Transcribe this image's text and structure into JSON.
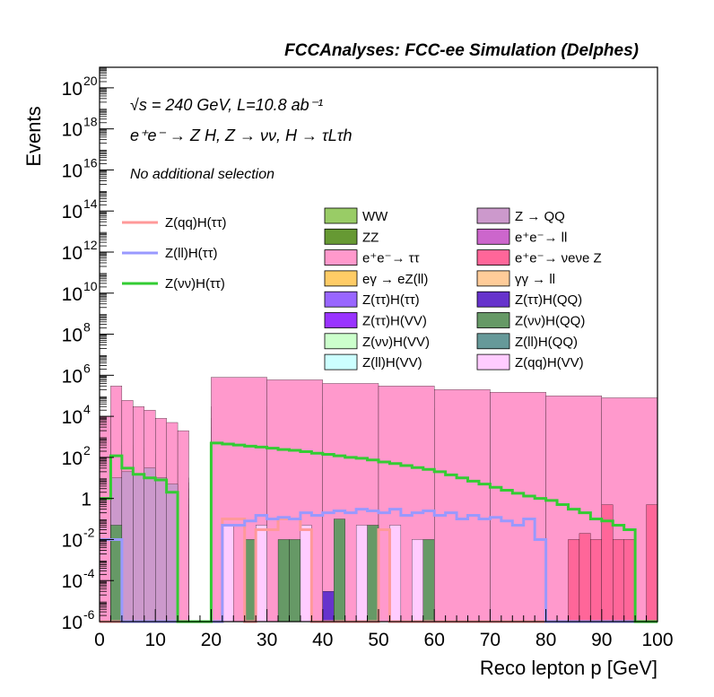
{
  "title": "FCCAnalyses: FCC-ee Simulation (Delphes)",
  "annotations": {
    "energy_line": "√s = 240 GeV, L=10.8 ab⁻¹",
    "process_line": "e⁺e⁻ → Z H, Z → νν, H → τLτh",
    "selection_line": "No additional selection"
  },
  "chart_data": {
    "type": "histogram",
    "xlabel": "Reco lepton p [GeV]",
    "ylabel": "Events",
    "xlim": [
      0,
      100
    ],
    "ylim": [
      1e-06,
      1e+21
    ],
    "yscale": "log",
    "bin_width": 2,
    "x_ticks": [
      "0",
      "10",
      "20",
      "30",
      "40",
      "50",
      "60",
      "70",
      "80",
      "90",
      "100"
    ],
    "y_ticks": [
      {
        "base": "10",
        "exp": "-6",
        "value": 1e-06
      },
      {
        "base": "10",
        "exp": "-4",
        "value": 0.0001
      },
      {
        "base": "10",
        "exp": "-2",
        "value": 0.01
      },
      {
        "base": "1",
        "exp": "",
        "value": 1
      },
      {
        "base": "10",
        "exp": "2",
        "value": 100.0
      },
      {
        "base": "10",
        "exp": "4",
        "value": 10000.0
      },
      {
        "base": "10",
        "exp": "6",
        "value": 1000000.0
      },
      {
        "base": "10",
        "exp": "8",
        "value": 100000000.0
      },
      {
        "base": "10",
        "exp": "10",
        "value": 10000000000.0
      },
      {
        "base": "10",
        "exp": "12",
        "value": 1000000000000.0
      },
      {
        "base": "10",
        "exp": "14",
        "value": 100000000000000.0
      },
      {
        "base": "10",
        "exp": "16",
        "value": 1e+16
      },
      {
        "base": "10",
        "exp": "18",
        "value": 1e+18
      },
      {
        "base": "10",
        "exp": "20",
        "value": 1e+20
      }
    ],
    "stack_bands": [
      {
        "name": "Z(ll)H(VV)",
        "color": "#ccffff",
        "x": [
          20,
          40,
          60,
          76,
          78,
          80,
          100
        ],
        "y": [
          0.05,
          0.3,
          0.3,
          0.1,
          1e-06,
          1e-06,
          1e-06
        ]
      },
      {
        "name": "Z(νν)H(VV)",
        "color": "#ccffcc",
        "x": [
          0,
          2,
          4,
          6,
          8,
          10,
          12,
          14,
          16,
          18,
          20,
          30,
          40,
          50,
          60,
          70,
          80,
          90,
          100
        ],
        "y": [
          0.3,
          0.5,
          2,
          2,
          1.5,
          1,
          0.5,
          0.1,
          1e-06,
          1e-06,
          100,
          60,
          40,
          30,
          20,
          10,
          3,
          0.5,
          0.1
        ]
      },
      {
        "name": "Z(ττ)H(VV)",
        "color": "#9933ff",
        "x": [
          0,
          2,
          4,
          6,
          8,
          10,
          12,
          14,
          16,
          18,
          20,
          40,
          60,
          70,
          80,
          90,
          100
        ],
        "y": [
          0.5,
          1,
          3,
          3,
          2,
          1.5,
          0.8,
          0.2,
          1e-06,
          1e-06,
          150,
          80,
          50,
          20,
          5,
          1,
          0.2
        ]
      },
      {
        "name": "Z(ττ)H(ττ)",
        "color": "#9966ff",
        "x": [
          0,
          2,
          4,
          6,
          8,
          10,
          12,
          14,
          16,
          18,
          20,
          40,
          60,
          80,
          100
        ],
        "y": [
          1,
          2,
          5,
          5,
          4,
          3,
          2,
          0.5,
          1e-06,
          1e-06,
          200,
          100,
          60,
          10,
          0.3
        ]
      },
      {
        "name": "eγ → eZ(ll)",
        "color": "#ffcc66",
        "x": [
          0,
          2,
          4,
          6,
          8,
          10,
          12,
          14,
          16,
          18,
          20,
          40,
          60,
          80,
          90,
          100
        ],
        "y": [
          2,
          4,
          10,
          10,
          8,
          6,
          4,
          1,
          1e-06,
          1e-06,
          300,
          200,
          150,
          100,
          80,
          50
        ]
      },
      {
        "name": "e⁺e⁻ → ll",
        "color": "#cc66cc",
        "x": [
          0,
          2,
          4,
          6,
          8,
          10,
          12,
          14,
          16,
          18,
          20,
          40,
          60,
          80,
          90,
          100
        ],
        "y": [
          10,
          30,
          80,
          60,
          40,
          20,
          10,
          3,
          1e-06,
          1e-06,
          3000,
          2000,
          1500,
          1000,
          800,
          600
        ]
      },
      {
        "name": "ZZ",
        "color": "#669933",
        "x": [
          0,
          2,
          4,
          6,
          8,
          10,
          12,
          14,
          16,
          18,
          20,
          40,
          60,
          80,
          100
        ],
        "y": [
          20,
          50,
          150,
          100,
          60,
          40,
          20,
          6,
          1e-06,
          1e-06,
          8000,
          6000,
          4000,
          2500,
          1500
        ]
      },
      {
        "name": "WW",
        "color": "#99cc66",
        "x": [
          0,
          2,
          4,
          6,
          8,
          10,
          12,
          14,
          16,
          18,
          20,
          40,
          60,
          80,
          100
        ],
        "y": [
          50,
          150,
          400,
          300,
          150,
          80,
          40,
          10,
          1e-06,
          1e-06,
          30000,
          25000,
          20000,
          15000,
          8000
        ]
      },
      {
        "name": "e⁺e⁻ → ττ",
        "color": "#ff99cc",
        "x": [
          0,
          2,
          4,
          6,
          8,
          10,
          12,
          14,
          16,
          18,
          20,
          30,
          40,
          50,
          60,
          70,
          80,
          90,
          100
        ],
        "y": [
          10000,
          300000,
          60000,
          30000,
          20000,
          8000,
          5000,
          2000,
          1e-06,
          1e-06,
          800000,
          600000,
          400000,
          300000,
          200000,
          150000,
          100000,
          80000,
          50000
        ]
      }
    ],
    "signal_lines": [
      {
        "name": "Z(qq)H(ττ)",
        "color": "#ff9999",
        "x": [
          0,
          2,
          4,
          6,
          8,
          10,
          12,
          14,
          16,
          18,
          20,
          22,
          24,
          26,
          28,
          30,
          32,
          34,
          36,
          38,
          40,
          42,
          44,
          46,
          48,
          50,
          52,
          54,
          56,
          58,
          60,
          62,
          64,
          66,
          68,
          70,
          72,
          74,
          76,
          78,
          80,
          82,
          84,
          86,
          88,
          90,
          92,
          94,
          96,
          98,
          100
        ],
        "y": [
          1e-06,
          1e-06,
          1e-06,
          1e-06,
          1e-06,
          1e-06,
          1e-06,
          1e-06,
          1e-06,
          1e-06,
          1e-06,
          0.1,
          0.1,
          1e-06,
          0.03,
          0.03,
          0.1,
          0.1,
          0.03,
          1e-06,
          1e-06,
          1e-06,
          1e-06,
          1e-06,
          1e-06,
          0.03,
          1e-06,
          1e-06,
          1e-06,
          1e-06,
          1e-06,
          1e-06,
          1e-06,
          1e-06,
          1e-06,
          1e-06,
          1e-06,
          1e-06,
          1e-06,
          1e-06,
          1e-06,
          1e-06,
          1e-06,
          1e-06,
          1e-06,
          1e-06,
          1e-06,
          1e-06,
          1e-06,
          1e-06,
          1e-06
        ]
      },
      {
        "name": "Z(ll)H(ττ)",
        "color": "#9999ff",
        "x": [
          0,
          2,
          4,
          6,
          8,
          10,
          12,
          14,
          16,
          18,
          20,
          22,
          24,
          26,
          28,
          30,
          32,
          34,
          36,
          38,
          40,
          42,
          44,
          46,
          48,
          50,
          52,
          54,
          56,
          58,
          60,
          62,
          64,
          66,
          68,
          70,
          72,
          74,
          76,
          78,
          80,
          82,
          84,
          86,
          88,
          90,
          92,
          94,
          96,
          98,
          100
        ],
        "y": [
          0.01,
          0.01,
          1e-06,
          1e-06,
          1e-06,
          1e-06,
          1e-06,
          1e-06,
          1e-06,
          1e-06,
          1e-06,
          0.05,
          0.05,
          0.08,
          0.15,
          0.1,
          0.12,
          0.1,
          0.2,
          0.15,
          0.2,
          0.25,
          0.2,
          0.3,
          0.25,
          0.2,
          0.3,
          0.15,
          0.2,
          0.25,
          0.15,
          0.2,
          0.1,
          0.15,
          0.1,
          0.12,
          0.08,
          0.05,
          0.1,
          0.01,
          1e-06,
          1e-06,
          1e-06,
          1e-06,
          1e-06,
          1e-06,
          1e-06,
          1e-06,
          1e-06,
          1e-06,
          1e-06
        ]
      },
      {
        "name": "Z(νν)H(ττ)",
        "color": "#33cc33",
        "x": [
          0,
          2,
          4,
          6,
          8,
          10,
          12,
          14,
          16,
          18,
          20,
          22,
          24,
          26,
          28,
          30,
          32,
          34,
          36,
          38,
          40,
          42,
          44,
          46,
          48,
          50,
          52,
          54,
          56,
          58,
          60,
          62,
          64,
          66,
          68,
          70,
          72,
          74,
          76,
          78,
          80,
          82,
          84,
          86,
          88,
          90,
          92,
          94,
          96,
          98,
          100
        ],
        "y": [
          1,
          120,
          30,
          15,
          10,
          8,
          2,
          1e-06,
          1e-06,
          1e-06,
          500,
          450,
          400,
          350,
          320,
          280,
          240,
          220,
          190,
          160,
          140,
          120,
          100,
          90,
          75,
          60,
          50,
          40,
          32,
          26,
          20,
          14,
          10,
          7,
          5,
          3.5,
          2.5,
          1.8,
          1.3,
          1,
          0.8,
          0.5,
          0.3,
          0.2,
          0.1,
          0.08,
          0.05,
          0.03,
          1e-06,
          1e-06,
          1e-06
        ]
      }
    ],
    "legend_left": [
      {
        "label": "Z(qq)H(ττ)",
        "color": "#ff9999"
      },
      {
        "label": "Z(ll)H(ττ)",
        "color": "#9999ff"
      },
      {
        "label": "Z(νν)H(ττ)",
        "color": "#33cc33"
      }
    ],
    "legend_mid": [
      {
        "label": "WW",
        "color": "#99cc66"
      },
      {
        "label": "ZZ",
        "color": "#669933"
      },
      {
        "label": "e⁺e⁻→ ττ",
        "color": "#ff99cc"
      },
      {
        "label": "eγ → eZ(ll)",
        "color": "#ffcc66"
      },
      {
        "label": "Z(ττ)H(ττ)",
        "color": "#9966ff"
      },
      {
        "label": "Z(ττ)H(VV)",
        "color": "#9933ff"
      },
      {
        "label": "Z(νν)H(VV)",
        "color": "#ccffcc"
      },
      {
        "label": "Z(ll)H(VV)",
        "color": "#ccffff"
      }
    ],
    "legend_right": [
      {
        "label": "Z → QQ",
        "color": "#cc99cc"
      },
      {
        "label": "e⁺e⁻→ ll",
        "color": "#cc66cc"
      },
      {
        "label": "e⁺e⁻→ νeνe Z",
        "color": "#ff6699"
      },
      {
        "label": "γγ → ll",
        "color": "#ffcc99"
      },
      {
        "label": "Z(ττ)H(QQ)",
        "color": "#6633cc"
      },
      {
        "label": "Z(νν)H(QQ)",
        "color": "#669966"
      },
      {
        "label": "Z(ll)H(QQ)",
        "color": "#669999"
      },
      {
        "label": "Z(qq)H(VV)",
        "color": "#ffccff"
      }
    ],
    "sparse_bars": [
      {
        "name": "Z → QQ",
        "color": "#cc99cc",
        "x": [
          0,
          2,
          4,
          6,
          8,
          10,
          12,
          14
        ],
        "y": [
          1e-06,
          10,
          20,
          15,
          30,
          10,
          5,
          1e-06
        ]
      },
      {
        "name": "e⁺e⁻→ νeνe Z",
        "color": "#ff6699",
        "x": [
          80,
          82,
          84,
          86,
          88,
          90,
          92,
          94,
          96,
          98
        ],
        "y": [
          1e-06,
          1e-06,
          0.01,
          0.02,
          0.01,
          0.5,
          0.01,
          0.01,
          1e-06,
          0.5
        ]
      },
      {
        "name": "Z(ττ)H(QQ)",
        "color": "#6633cc",
        "x": [
          40,
          42
        ],
        "y": [
          3e-05,
          1e-06
        ]
      },
      {
        "name": "Z(νν)H(QQ)",
        "color": "#669966",
        "x": [
          2,
          26,
          32,
          34,
          42,
          48,
          52,
          58,
          66,
          80
        ],
        "y": [
          0.05,
          0.01,
          0.01,
          0.01,
          0.1,
          0.05,
          1e-06,
          0.01,
          1e-06,
          1e-06
        ]
      },
      {
        "name": "Z(qq)H(VV)",
        "color": "#ffccff",
        "x": [
          22,
          28,
          36,
          46,
          52,
          56,
          60,
          64,
          70,
          76
        ],
        "y": [
          0.05,
          0.05,
          0.05,
          0.05,
          0.05,
          0.01,
          1e-06,
          1e-06,
          1e-06,
          1e-06
        ]
      },
      {
        "name": "γγ → ll",
        "color": "#ffcc99",
        "x": [],
        "y": []
      },
      {
        "name": "Z(ll)H(QQ)",
        "color": "#669999",
        "x": [],
        "y": []
      }
    ]
  }
}
